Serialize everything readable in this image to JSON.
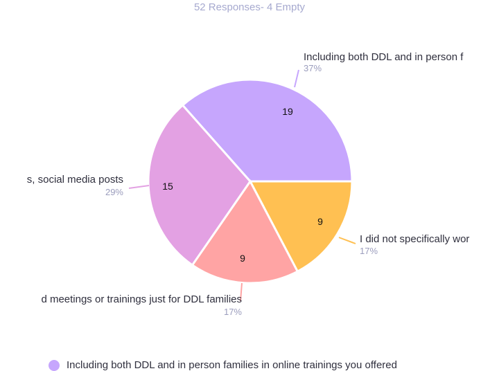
{
  "chart_data": {
    "type": "pie",
    "subtitle": "52 Responses- 4 Empty",
    "slices": [
      {
        "label": "Including both DDL and in person f",
        "value": 19,
        "pct": "37%",
        "color": "#c6a6fd"
      },
      {
        "label": "I did not specifically wor",
        "value": 9,
        "pct": "17%",
        "color": "#ffc052"
      },
      {
        "label": "d meetings or trainings just for DDL families",
        "value": 9,
        "pct": "17%",
        "color": "#ffa4a4"
      },
      {
        "label": "s, social media posts",
        "value": 15,
        "pct": "29%",
        "color": "#e3a1e3"
      }
    ],
    "legend": [
      {
        "label": "Including both DDL and in person families in  online trainings you offered",
        "color": "#c6a6fd"
      }
    ]
  }
}
